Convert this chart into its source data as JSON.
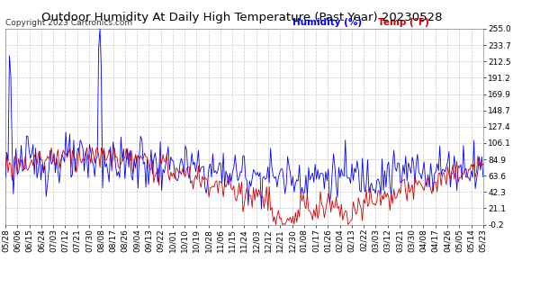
{
  "title": "Outdoor Humidity At Daily High Temperature (Past Year) 20230528",
  "copyright": "Copyright 2023 Cartronics.com",
  "legend_humidity": "Humidity (%)",
  "legend_temp": "Temp (°F)",
  "humidity_color": "#0000ff",
  "temp_color": "#cc0000",
  "bg_color": "#ffffff",
  "plot_bg_color": "#ffffff",
  "grid_color": "#bbbbbb",
  "yticks": [
    -0.2,
    21.1,
    42.3,
    63.6,
    84.9,
    106.1,
    127.4,
    148.7,
    169.9,
    191.2,
    212.5,
    233.7,
    255.0
  ],
  "xtick_labels": [
    "05/28",
    "06/06",
    "06/15",
    "06/24",
    "07/03",
    "07/12",
    "07/21",
    "07/30",
    "08/08",
    "08/17",
    "08/26",
    "09/04",
    "09/13",
    "09/22",
    "10/01",
    "10/10",
    "10/19",
    "10/28",
    "11/06",
    "11/15",
    "11/24",
    "12/03",
    "12/12",
    "12/21",
    "12/30",
    "01/08",
    "01/17",
    "01/26",
    "02/04",
    "02/13",
    "02/22",
    "03/03",
    "03/12",
    "03/21",
    "03/30",
    "04/08",
    "04/17",
    "04/26",
    "05/05",
    "05/14",
    "05/23"
  ],
  "ymin": -0.2,
  "ymax": 255.0,
  "title_fontsize": 9.5,
  "axis_fontsize": 6.5,
  "label_fontsize": 7.5,
  "copyright_fontsize": 6.5
}
